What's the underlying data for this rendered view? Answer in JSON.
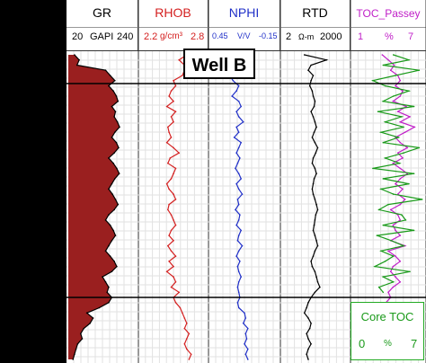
{
  "tracks": {
    "gr": {
      "name": "GR",
      "min": "20",
      "unit": "GAPI",
      "max": "240",
      "color": "#000000",
      "fill": "#9a1f1f"
    },
    "rhob": {
      "name": "RHOB",
      "min": "2.2",
      "unit": "g/cm³",
      "max": "2.8",
      "color": "#d42020"
    },
    "nphi": {
      "name": "NPHI",
      "min": "0.45",
      "unit": "V/V",
      "max": "-0.15",
      "color": "#2030c8"
    },
    "rtd": {
      "name": "RTD",
      "min": "2",
      "unit": "Ω-m",
      "max": "2000",
      "color": "#000000"
    },
    "toc": {
      "name": "TOC_Passey",
      "min": "1",
      "unit": "%",
      "max": "7",
      "color": "#c020c8"
    }
  },
  "well_label": "Well B",
  "core_toc": {
    "name": "Core TOC",
    "min": "0",
    "unit": "%",
    "max": "7",
    "color": "#1a9a1a"
  },
  "chart_data": {
    "type": "line",
    "title": "",
    "x_label": "",
    "y_label": "",
    "depth_samples": 60,
    "markers": [
      "top (upper horizontal line)",
      "base (lower horizontal line)"
    ],
    "series": [
      {
        "name": "GR",
        "range": [
          20,
          240
        ],
        "values": [
          40,
          55,
          48,
          140,
          155,
          170,
          150,
          165,
          175,
          180,
          160,
          172,
          168,
          178,
          185,
          170,
          160,
          175,
          182,
          168,
          150,
          165,
          176,
          184,
          170,
          160,
          150,
          162,
          172,
          180,
          168,
          150,
          140,
          155,
          165,
          172,
          160,
          150,
          140,
          155,
          168,
          176,
          160,
          130,
          140,
          150,
          145,
          160,
          150,
          120,
          80,
          100,
          90,
          70,
          60,
          65,
          50,
          45,
          40,
          35
        ]
      },
      {
        "name": "RHOB",
        "range": [
          2.2,
          2.8
        ],
        "values": [
          2.62,
          2.55,
          2.6,
          2.6,
          2.58,
          2.5,
          2.52,
          2.48,
          2.46,
          2.5,
          2.44,
          2.52,
          2.48,
          2.5,
          2.45,
          2.46,
          2.48,
          2.44,
          2.5,
          2.55,
          2.47,
          2.45,
          2.52,
          2.5,
          2.48,
          2.44,
          2.46,
          2.5,
          2.52,
          2.46,
          2.45,
          2.48,
          2.5,
          2.52,
          2.48,
          2.46,
          2.5,
          2.45,
          2.48,
          2.52,
          2.46,
          2.5,
          2.44,
          2.5,
          2.52,
          2.48,
          2.55,
          2.5,
          2.52,
          2.56,
          2.58,
          2.6,
          2.62,
          2.6,
          2.64,
          2.62,
          2.6,
          2.62,
          2.66,
          2.64
        ]
      },
      {
        "name": "NPHI",
        "range": [
          0.45,
          -0.15
        ],
        "values": [
          0.12,
          0.15,
          0.1,
          0.3,
          0.28,
          0.25,
          0.2,
          0.22,
          0.26,
          0.2,
          0.18,
          0.22,
          0.2,
          0.16,
          0.22,
          0.2,
          0.24,
          0.18,
          0.2,
          0.22,
          0.19,
          0.21,
          0.23,
          0.2,
          0.18,
          0.22,
          0.2,
          0.17,
          0.21,
          0.2,
          0.23,
          0.19,
          0.2,
          0.22,
          0.18,
          0.2,
          0.21,
          0.17,
          0.2,
          0.22,
          0.19,
          0.21,
          0.2,
          0.18,
          0.2,
          0.21,
          0.2,
          0.19,
          0.21,
          0.2,
          0.15,
          0.14,
          0.16,
          0.12,
          0.14,
          0.13,
          0.15,
          0.12,
          0.14,
          0.12
        ]
      },
      {
        "name": "RTD",
        "range": [
          2,
          2000
        ],
        "scale": "log",
        "values": [
          20,
          200,
          40,
          30,
          50,
          40,
          35,
          45,
          50,
          60,
          55,
          40,
          50,
          60,
          70,
          55,
          45,
          60,
          80,
          65,
          50,
          45,
          60,
          70,
          55,
          50,
          45,
          50,
          60,
          70,
          80,
          65,
          60,
          55,
          50,
          60,
          70,
          80,
          60,
          50,
          40,
          45,
          60,
          70,
          80,
          100,
          60,
          40,
          30,
          25,
          20,
          30,
          40,
          35,
          25,
          30,
          40,
          30,
          25,
          30
        ]
      },
      {
        "name": "TOC_Passey",
        "range": [
          1,
          7
        ],
        "values": [
          3.5,
          4.0,
          4.5,
          4.2,
          4.8,
          5.0,
          4.6,
          5.2,
          5.0,
          4.4,
          5.5,
          4.8,
          5.8,
          5.0,
          6.2,
          5.4,
          4.6,
          5.0,
          5.6,
          4.8,
          5.2,
          4.4,
          5.0,
          5.6,
          5.0,
          4.6,
          5.2,
          4.8,
          5.4,
          5.0,
          4.2,
          4.8,
          5.0,
          4.4,
          4.6,
          5.0,
          4.2,
          5.4,
          4.0,
          4.6,
          5.0,
          4.4,
          4.2,
          4.6,
          5.0,
          4.4,
          4.0,
          4.2,
          3.8,
          3.6,
          3.5,
          3.2,
          3.4,
          3.0,
          3.2,
          3.0,
          2.8,
          3.0,
          2.8,
          2.6
        ]
      },
      {
        "name": "Core TOC",
        "range": [
          0,
          7
        ],
        "values": [
          4.0,
          5.5,
          3.0,
          6.5,
          4.2,
          2.0,
          3.2,
          5.5,
          4.0,
          3.0,
          6.0,
          2.5,
          4.8,
          3.2,
          5.0,
          2.8,
          4.5,
          3.0,
          6.5,
          5.0,
          3.2,
          4.6,
          2.0,
          6.0,
          3.0,
          5.5,
          2.8,
          4.0,
          6.8,
          3.5,
          2.6,
          4.8,
          5.2,
          3.0,
          6.0,
          2.4,
          3.8,
          5.0,
          2.8,
          4.0,
          3.2,
          2.2,
          5.6,
          3.0,
          4.0,
          2.6,
          3.0,
          null,
          null,
          null,
          null,
          null,
          null,
          null,
          null,
          null,
          null,
          null,
          null,
          null
        ]
      }
    ]
  }
}
